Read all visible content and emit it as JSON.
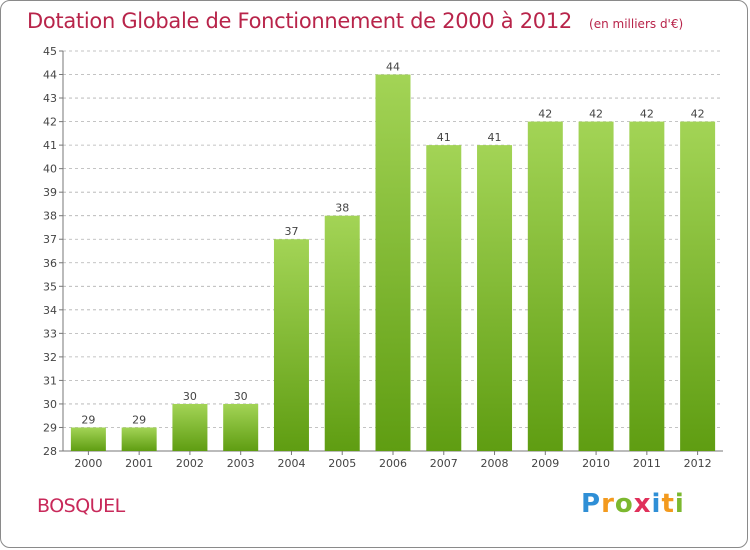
{
  "title": {
    "main": "Dotation Globale de Fonctionnement de 2000 à 2012",
    "unit": "(en milliers d'€)"
  },
  "commune": "BOSQUEL",
  "logo": {
    "text": "Proxiti",
    "letters": [
      {
        "ch": "P",
        "color": "#2f8fd6"
      },
      {
        "ch": "r",
        "color": "#f39a1e"
      },
      {
        "ch": "o",
        "color": "#7cb82f"
      },
      {
        "ch": "x",
        "color": "#e0305a"
      },
      {
        "ch": "i",
        "color": "#2f8fd6"
      },
      {
        "ch": "t",
        "color": "#f39a1e"
      },
      {
        "ch": "i",
        "color": "#7cb82f"
      }
    ]
  },
  "colors": {
    "bar_top": "#a3d456",
    "bar_bottom": "#5f9d12",
    "title": "#b8244a",
    "grid": "#b0b0b0"
  },
  "chart_data": {
    "type": "bar",
    "title": "Dotation Globale de Fonctionnement de 2000 à 2012",
    "subtitle": "(en milliers d'€)",
    "xlabel": "",
    "ylabel": "",
    "categories": [
      "2000",
      "2001",
      "2002",
      "2003",
      "2004",
      "2005",
      "2006",
      "2007",
      "2008",
      "2009",
      "2010",
      "2011",
      "2012"
    ],
    "values": [
      29,
      29,
      30,
      30,
      37,
      38,
      44,
      41,
      41,
      42,
      42,
      42,
      42
    ],
    "ylim": [
      28,
      45
    ],
    "yticks": [
      28,
      29,
      30,
      31,
      32,
      33,
      34,
      35,
      36,
      37,
      38,
      39,
      40,
      41,
      42,
      43,
      44,
      45
    ],
    "grid": true,
    "data_labels": true
  }
}
